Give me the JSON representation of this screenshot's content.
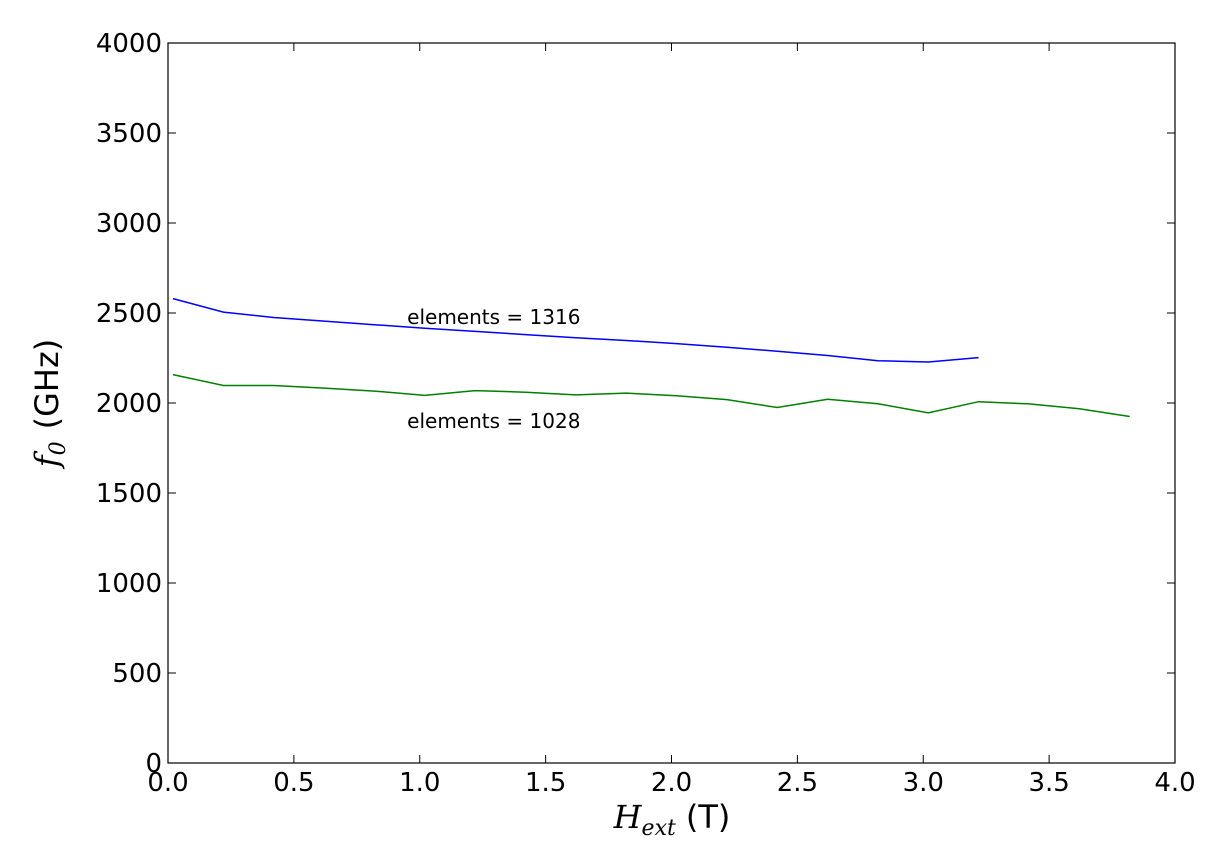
{
  "chart_data": {
    "type": "line",
    "xlabel": {
      "math": "H",
      "sub": "ext",
      "unit": "(T)"
    },
    "ylabel": {
      "math": "f",
      "sub": "0",
      "unit": "(GHz)"
    },
    "xlim": [
      0,
      4.0
    ],
    "ylim": [
      0,
      4000
    ],
    "xticks": [
      0.0,
      0.5,
      1.0,
      1.5,
      2.0,
      2.5,
      3.0,
      3.5,
      4.0
    ],
    "xtick_labels": [
      "0.0",
      "0.5",
      "1.0",
      "1.5",
      "2.0",
      "2.5",
      "3.0",
      "3.5",
      "4.0"
    ],
    "yticks": [
      0,
      500,
      1000,
      1500,
      2000,
      2500,
      3000,
      3500,
      4000
    ],
    "ytick_labels": [
      "0",
      "500",
      "1000",
      "1500",
      "2000",
      "2500",
      "3000",
      "3500",
      "4000"
    ],
    "grid": false,
    "series": [
      {
        "color": "#0000ff",
        "x": [
          0.02,
          0.22,
          0.42,
          0.62,
          0.82,
          1.02,
          1.22,
          1.42,
          1.62,
          1.82,
          2.02,
          2.22,
          2.42,
          2.62,
          2.82,
          3.02,
          3.22
        ],
        "y": [
          2580,
          2505,
          2475,
          2455,
          2435,
          2415,
          2398,
          2380,
          2363,
          2347,
          2330,
          2310,
          2288,
          2264,
          2235,
          2228,
          2252
        ]
      },
      {
        "color": "#008000",
        "x": [
          0.02,
          0.22,
          0.42,
          0.62,
          0.82,
          1.02,
          1.22,
          1.42,
          1.62,
          1.82,
          2.02,
          2.22,
          2.42,
          2.62,
          2.82,
          3.02,
          3.22,
          3.42,
          3.62,
          3.82
        ],
        "y": [
          2158,
          2097,
          2097,
          2083,
          2066,
          2042,
          2069,
          2060,
          2045,
          2055,
          2040,
          2019,
          1975,
          2021,
          1996,
          1945,
          2007,
          1995,
          1968,
          1925
        ]
      }
    ],
    "annotations": [
      {
        "text": "elements = 1316",
        "x": 0.95,
        "y": 2440
      },
      {
        "text": "elements = 1028",
        "x": 0.95,
        "y": 1860
      }
    ]
  }
}
